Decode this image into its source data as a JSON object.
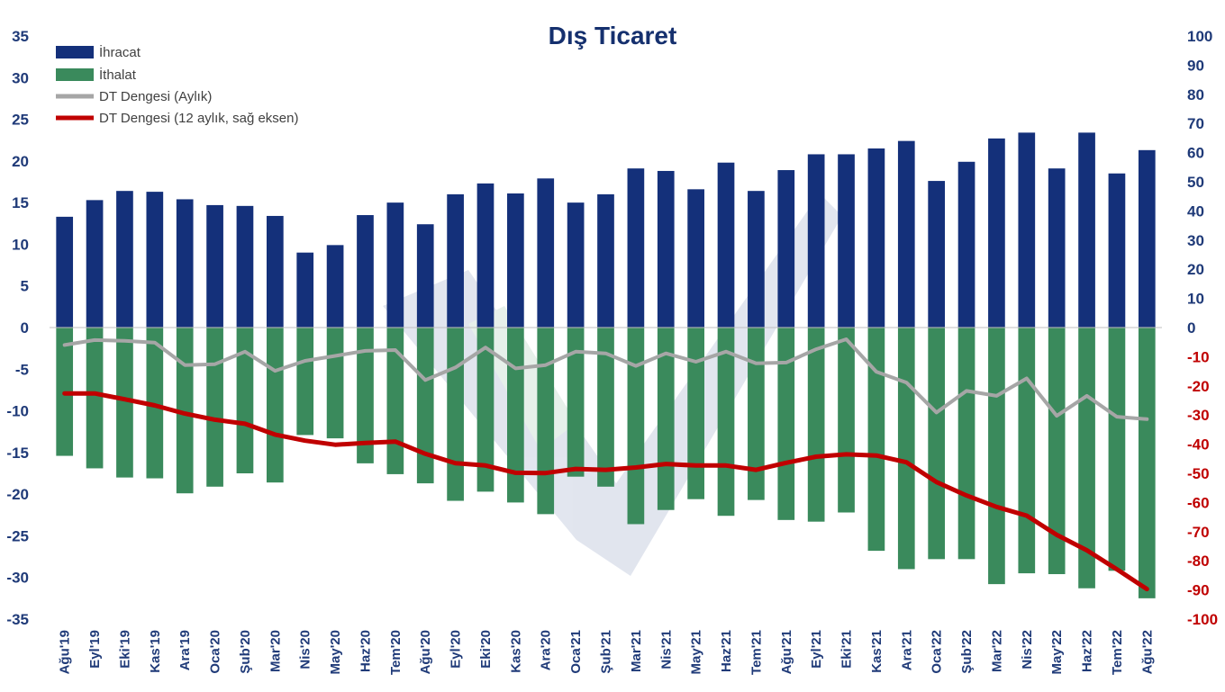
{
  "chart_data": {
    "type": "bar",
    "title": "Dış Ticaret",
    "categories": [
      "Ağu'19",
      "Eyl'19",
      "Eki'19",
      "Kas'19",
      "Ara'19",
      "Oca'20",
      "Şub'20",
      "Mar'20",
      "Nis'20",
      "May'20",
      "Haz'20",
      "Tem'20",
      "Ağu'20",
      "Eyl'20",
      "Eki'20",
      "Kas'20",
      "Ara'20",
      "Oca'21",
      "Şub'21",
      "Mar'21",
      "Nis'21",
      "May'21",
      "Haz'21",
      "Tem'21",
      "Ağu'21",
      "Eyl'21",
      "Eki'21",
      "Kas'21",
      "Ara'21",
      "Oca'22",
      "Şub'22",
      "Mar'22",
      "Nis'22",
      "May'22",
      "Haz'22",
      "Tem'22",
      "Ağu'22"
    ],
    "series": [
      {
        "name": "İhracat",
        "kind": "bar",
        "axis": "left",
        "color": "#14307a",
        "values": [
          13.3,
          15.3,
          16.4,
          16.3,
          15.4,
          14.7,
          14.6,
          13.4,
          9.0,
          9.9,
          13.5,
          15.0,
          12.4,
          16.0,
          17.3,
          16.1,
          17.9,
          15.0,
          16.0,
          19.1,
          18.8,
          16.6,
          19.8,
          16.4,
          18.9,
          20.8,
          20.8,
          21.5,
          22.4,
          17.6,
          19.9,
          22.7,
          23.4,
          19.1,
          23.4,
          18.5,
          21.3
        ]
      },
      {
        "name": "İthalat",
        "kind": "bar",
        "axis": "left",
        "color": "#3a8a5c",
        "values": [
          -15.4,
          -16.9,
          -18.0,
          -18.1,
          -19.9,
          -19.1,
          -17.5,
          -18.6,
          -12.9,
          -13.3,
          -16.3,
          -17.6,
          -18.7,
          -20.8,
          -19.7,
          -21.0,
          -22.4,
          -17.9,
          -19.1,
          -23.6,
          -21.9,
          -20.6,
          -22.6,
          -20.7,
          -23.1,
          -23.3,
          -22.2,
          -26.8,
          -29.0,
          -27.8,
          -27.8,
          -30.8,
          -29.5,
          -29.6,
          -31.3,
          -29.2,
          -32.5
        ]
      },
      {
        "name": "DT Dengesi (Aylık)",
        "kind": "line",
        "axis": "left",
        "color": "#a6a6a6",
        "values": [
          -2.1,
          -1.5,
          -1.6,
          -1.8,
          -4.5,
          -4.4,
          -2.9,
          -5.2,
          -4.0,
          -3.4,
          -2.8,
          -2.7,
          -6.3,
          -4.8,
          -2.4,
          -4.9,
          -4.5,
          -2.9,
          -3.1,
          -4.6,
          -3.1,
          -4.1,
          -2.9,
          -4.3,
          -4.2,
          -2.6,
          -1.4,
          -5.3,
          -6.6,
          -10.2,
          -7.6,
          -8.2,
          -6.1,
          -10.6,
          -8.2,
          -10.7,
          -11.0
        ]
      },
      {
        "name": "DT Dengesi (12 aylık, sağ eksen)",
        "kind": "line",
        "axis": "right",
        "color": "#c00000",
        "values": [
          -22.6,
          -22.6,
          -24.6,
          -26.7,
          -29.5,
          -31.6,
          -33.0,
          -36.7,
          -38.8,
          -40.2,
          -39.6,
          -39.1,
          -43.3,
          -46.5,
          -47.3,
          -49.8,
          -49.9,
          -48.5,
          -48.8,
          -48.0,
          -46.8,
          -47.3,
          -47.3,
          -48.8,
          -46.4,
          -44.3,
          -43.5,
          -43.9,
          -46.2,
          -53.0,
          -57.6,
          -61.5,
          -64.5,
          -71.1,
          -76.4,
          -82.9,
          -89.7
        ]
      }
    ],
    "y_left": {
      "min": -35,
      "max": 35,
      "step": 5
    },
    "y_right": {
      "min": -100,
      "max": 100,
      "step": 10
    },
    "legend_position": "top-left",
    "grid": false,
    "colors": {
      "left_axis_text": "#1f3a78",
      "right_axis_positive": "#1f3a78",
      "right_axis_negative": "#c00000",
      "x_axis_text": "#1f3a78",
      "title": "#15306e"
    }
  }
}
